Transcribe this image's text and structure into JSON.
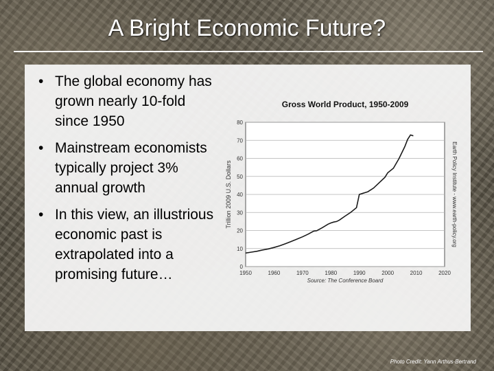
{
  "slide": {
    "title": "A Bright Economic Future?",
    "bullets": [
      "The global economy has grown nearly 10-fold since 1950",
      "Mainstream economists typically project 3% annual growth",
      "In this view, an illustrious economic past is extrapolated into a promising future…"
    ],
    "credit": "Photo Credit: Yann Arthus-Bertrand"
  },
  "chart_data": {
    "type": "line",
    "title": "Gross World Product, 1950-2009",
    "ylabel": "Trillion 2009 U.S. Dollars",
    "source": "Source: The Conference Board",
    "watermark": "Earth Policy Institute - www.earth-policy.org",
    "xlim": [
      1950,
      2020
    ],
    "ylim": [
      0,
      80
    ],
    "xticks": [
      1950,
      1960,
      1970,
      1980,
      1990,
      2000,
      2010,
      2020
    ],
    "yticks": [
      0,
      10,
      20,
      30,
      40,
      50,
      60,
      70,
      80
    ],
    "grid": "horizontal",
    "series": [
      {
        "color": "#1a1a1a",
        "x": [
          1950,
          1952,
          1954,
          1956,
          1958,
          1960,
          1962,
          1964,
          1966,
          1968,
          1970,
          1972,
          1974,
          1975,
          1977,
          1979,
          1980,
          1981,
          1982,
          1983,
          1985,
          1987,
          1989,
          1990,
          1991,
          1992,
          1993,
          1995,
          1997,
          1999,
          2000,
          2002,
          2004,
          2006,
          2007,
          2008,
          2009
        ],
        "y": [
          7.5,
          8.0,
          8.5,
          9.2,
          9.8,
          10.6,
          11.5,
          12.7,
          13.9,
          15.2,
          16.5,
          18.0,
          19.7,
          19.9,
          21.6,
          23.5,
          24.2,
          24.7,
          25.0,
          25.8,
          28.0,
          30.1,
          32.7,
          40.0,
          40.5,
          41.0,
          41.5,
          43.5,
          46.5,
          49.5,
          52.0,
          54.5,
          60.0,
          66.5,
          70.5,
          73.0,
          72.5
        ]
      }
    ]
  }
}
